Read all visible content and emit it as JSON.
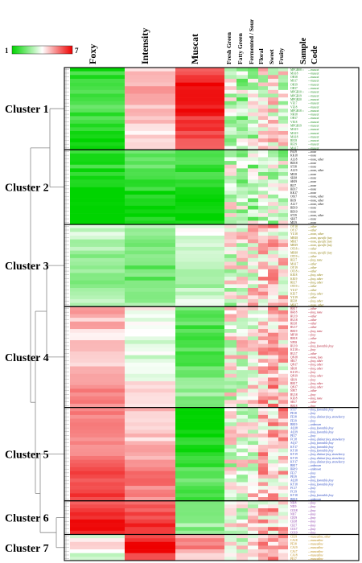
{
  "chart_data": {
    "type": "heatmap",
    "scale": {
      "min_label": "1",
      "max_label": "7",
      "min": 1,
      "max": 7,
      "colors": [
        "#00d400",
        "#ffffff",
        "#ee0000"
      ]
    },
    "columns": [
      {
        "label": "Foxy"
      },
      {
        "label": "Intensity"
      },
      {
        "label": "Muscat"
      },
      {
        "label": "Fresh Green"
      },
      {
        "label": "Fatty Green"
      },
      {
        "label": "Fermented / Sour"
      },
      {
        "label": "Floral"
      },
      {
        "label": "Sweet"
      },
      {
        "label": "Fruity"
      },
      {
        "label": "Sample Code"
      }
    ],
    "clusters": [
      {
        "label": "Cluster 1",
        "rows": 22,
        "means": [
          1.5,
          4.6,
          6.3,
          3.6,
          3.2,
          3.4,
          3.9,
          4.1,
          3.8
        ],
        "code_color": "#1f8f1f",
        "codes": [
          "MPGB08 ○",
          "MA18",
          "OH18",
          "MS17",
          "OH19",
          "OH17",
          "MPGB10 ○",
          "MPGB19",
          "MPGB20",
          "VE17",
          "VE18",
          "MPGB18 ○",
          "NH18",
          "OH17",
          "VE18",
          "MPGB19",
          "MA19",
          "MA19",
          "MA18",
          "RE18",
          "RE19",
          "MA17"
        ],
        "descs": [
          "muscat",
          "muscat",
          "muscat",
          "muscat",
          "muscat",
          "muscat",
          "muscat",
          "muscat",
          "muscat",
          "muscat",
          "muscat",
          "muscat",
          "muscat",
          "muscat",
          "muscat",
          "muscat",
          "muscat",
          "muscat",
          "muscat",
          "muscat",
          "muscat",
          "muscat"
        ]
      },
      {
        "label": "Cluster 2",
        "rows": 20,
        "means": [
          1.1,
          1.6,
          1.3,
          3.6,
          3.3,
          3.2,
          3.4,
          3.3,
          3.4
        ],
        "code_color": "#000000",
        "codes": [
          "FA19",
          "KK18",
          "AL18",
          "BD18",
          "ST18",
          "AL19",
          "MI18",
          "SH18",
          "SH19",
          "BI17",
          "BD17",
          "KK17",
          "OS17",
          "BI19",
          "AL17",
          "BD19",
          "BD19",
          "ST19",
          "SH17",
          "MI19"
        ],
        "descs": [
          "none",
          "none",
          "none, other",
          "none",
          "none",
          "none, other",
          "none",
          "none",
          "none",
          "none",
          "none",
          "none",
          "none, other",
          "none, other",
          "none, other",
          "none",
          "none",
          "none, other",
          "none",
          "none"
        ]
      },
      {
        "label": "Cluster 3",
        "rows": 22,
        "means": [
          3.0,
          2.7,
          3.4,
          3.7,
          3.9,
          4.1,
          4.5,
          4.6,
          4.4
        ],
        "code_color": "#8a7a00",
        "codes": [
          "OY18",
          "OY17",
          "YU18",
          "MB18",
          "MB17",
          "MB19",
          "OT18 ○",
          "MB18",
          "OT19 ○",
          "RE17",
          "MA17",
          "OY19",
          "OT18 ○",
          "KE18",
          "KE19",
          "RE17",
          "OT19 ○",
          "YU17",
          "KE17",
          "YU19",
          "RE18",
          "MB17"
        ],
        "descs": [
          "other",
          "other",
          "none, other",
          "none, specific foxy",
          "none, specific foxy",
          "none, specific foxy",
          "other",
          "none, specific foxy",
          "other",
          "foxy, none",
          "other",
          "other",
          "other",
          "foxy, other",
          "foxy, other",
          "foxy, other",
          "other",
          "other",
          "foxy, other",
          "other",
          "foxy, other",
          "none, other"
        ]
      },
      {
        "label": "Cluster 4",
        "rows": 27,
        "means": [
          5.0,
          4.0,
          2.3,
          3.8,
          3.9,
          4.0,
          4.6,
          4.8,
          4.5
        ],
        "code_color": "#b0122a",
        "codes": [
          "BR17",
          "BR18",
          "RU19",
          "RU18",
          "RE18",
          "RU17",
          "BR19",
          "MP18",
          "RR18",
          "NP18",
          "RU19",
          "KU18 ○",
          "RU17",
          "QN18",
          "SR17",
          "QN17",
          "SR18",
          "KU19 ○",
          "QN19",
          "SR19",
          "RR17",
          "QN17",
          "NP17",
          "RU18",
          "KE18",
          "SR17",
          "BR18"
        ],
        "descs": [
          "other",
          "foxy, none",
          "other",
          "other",
          "other",
          "other",
          "foxy, none",
          "foxy",
          "other",
          "foxy",
          "foxy, favorable foxy",
          "foxy",
          "other",
          "none, foxy",
          "foxy, other",
          "foxy, other",
          "foxy, other",
          "foxy",
          "foxy, other",
          "foxy",
          "foxy, other",
          "foxy, other",
          "other",
          "foxy",
          "foxy, none",
          "other",
          "foxy"
        ]
      },
      {
        "label": "Cluster 5",
        "rows": 25,
        "means": [
          5.7,
          5.0,
          1.6,
          3.7,
          3.9,
          4.0,
          4.6,
          4.5,
          4.7
        ],
        "code_color": "#1f3fbf",
        "codes": [
          "ST17",
          "PE18",
          "FE18",
          "FE19",
          "BR19",
          "AQ18",
          "AQ19",
          "PE17",
          "FC18",
          "AQ17",
          "KY17",
          "KY18",
          "KY19",
          "KV19",
          "KY17",
          "BR17",
          "BR19",
          "FE17",
          "PE19",
          "AQ18",
          "KY18",
          "FC17",
          "FC19",
          "KV18",
          "BR18"
        ],
        "descs": [
          "foxy, favorable foxy",
          "foxy",
          "foxy, distinct foxy, strawberry",
          "foxy",
          "unknown",
          "foxy, favorable foxy",
          "foxy, favorable foxy",
          "foxy",
          "foxy, distinct foxy, strawberry",
          "foxy, favorable foxy",
          "foxy, favorable foxy",
          "foxy, favorable foxy",
          "foxy, distinct foxy, strawberry",
          "foxy, distinct foxy, strawberry",
          "foxy, distinct foxy, strawberry",
          "unknown",
          "unknown",
          "foxy",
          "foxy",
          "foxy, favorable foxy",
          "foxy, favorable foxy",
          "foxy",
          "foxy",
          "foxy, favorable foxy",
          "unknown"
        ]
      },
      {
        "label": "Cluster 6",
        "rows": 9,
        "means": [
          6.4,
          6.0,
          2.5,
          3.6,
          3.8,
          4.2,
          4.7,
          4.6,
          4.6
        ],
        "code_color": "#7a1f9e",
        "codes": [
          "NI18",
          "NI19",
          "CO18",
          "NI17",
          "CE19",
          "CE18",
          "CE17",
          "CO17",
          "CO19"
        ],
        "descs": [
          "foxy",
          "foxy",
          "foxy",
          "foxy",
          "foxy",
          "foxy",
          "foxy",
          "foxy",
          "foxy"
        ]
      },
      {
        "label": "Cluster 7",
        "rows": 7,
        "means": [
          3.8,
          6.6,
          5.0,
          4.3,
          4.0,
          3.8,
          4.6,
          4.7,
          4.8
        ],
        "code_color": "#b8860b",
        "codes": [
          "CE19",
          "CA18",
          "PE18",
          "CA19",
          "CA17",
          "CA18",
          "PE17"
        ],
        "descs": [
          "muscadine, other",
          "muscadine",
          "muscadine",
          "muscadine",
          "muscadine",
          "muscadine",
          "muscadine"
        ]
      }
    ],
    "colors": {
      "cluster_border": "#000000",
      "dendrogram": "#888888"
    }
  }
}
